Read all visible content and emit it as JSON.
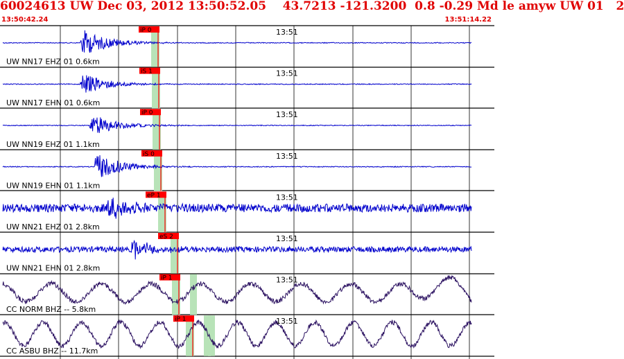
{
  "header": {
    "title": "60024613 UW Dec 03, 2012 13:50:52.05    43.7213 -121.3200  0.8 -0.29 Md le amyw UW 01   2",
    "start_time": "13:50:42.24",
    "end_time": "13:51:14.22"
  },
  "colors": {
    "title": "#e00000",
    "trace_high_freq": "#0000cc",
    "trace_long_period": "#2a1060",
    "pick_box": "#ff0000",
    "pick_window": "#b8e3b8",
    "grid": "#000000"
  },
  "traces": [
    {
      "label": "UW NN17 EHZ 01 0.6km",
      "time": "13:51",
      "pick": "iP 0",
      "style": "quake",
      "onset": 0.15,
      "amp": 1.0
    },
    {
      "label": "UW NN17 EHN 01 0.6km",
      "time": "13:51",
      "pick": "iS 1",
      "style": "quake",
      "onset": 0.15,
      "amp": 0.8
    },
    {
      "label": "UW NN19 EHZ 01 1.1km",
      "time": "13:51",
      "pick": "iP 0",
      "style": "quake",
      "onset": 0.17,
      "amp": 0.8
    },
    {
      "label": "UW NN19 EHN 01 1.1km",
      "time": "13:51",
      "pick": "iS 0",
      "style": "quake",
      "onset": 0.18,
      "amp": 1.0
    },
    {
      "label": "UW NN21 EHZ 01 2.8km",
      "time": "13:51",
      "pick": "eP 1",
      "style": "noisy",
      "onset": 0.21,
      "amp": 1.0
    },
    {
      "label": "UW NN21 EHN 01 2.8km",
      "time": "13:51",
      "pick": "eS 2",
      "style": "noisy2",
      "onset": 0.26,
      "amp": 0.9
    },
    {
      "label": "CC NORM BHZ -- 5.8km",
      "time": "13:51",
      "pick": "iP 1",
      "style": "lp",
      "onset": 0.31,
      "amp": 1.0
    },
    {
      "label": "CC ASBU BHZ -- 11.7km",
      "time": "13:51",
      "pick": "iP 1",
      "style": "lp2",
      "onset": 0.38,
      "amp": 1.0
    }
  ]
}
